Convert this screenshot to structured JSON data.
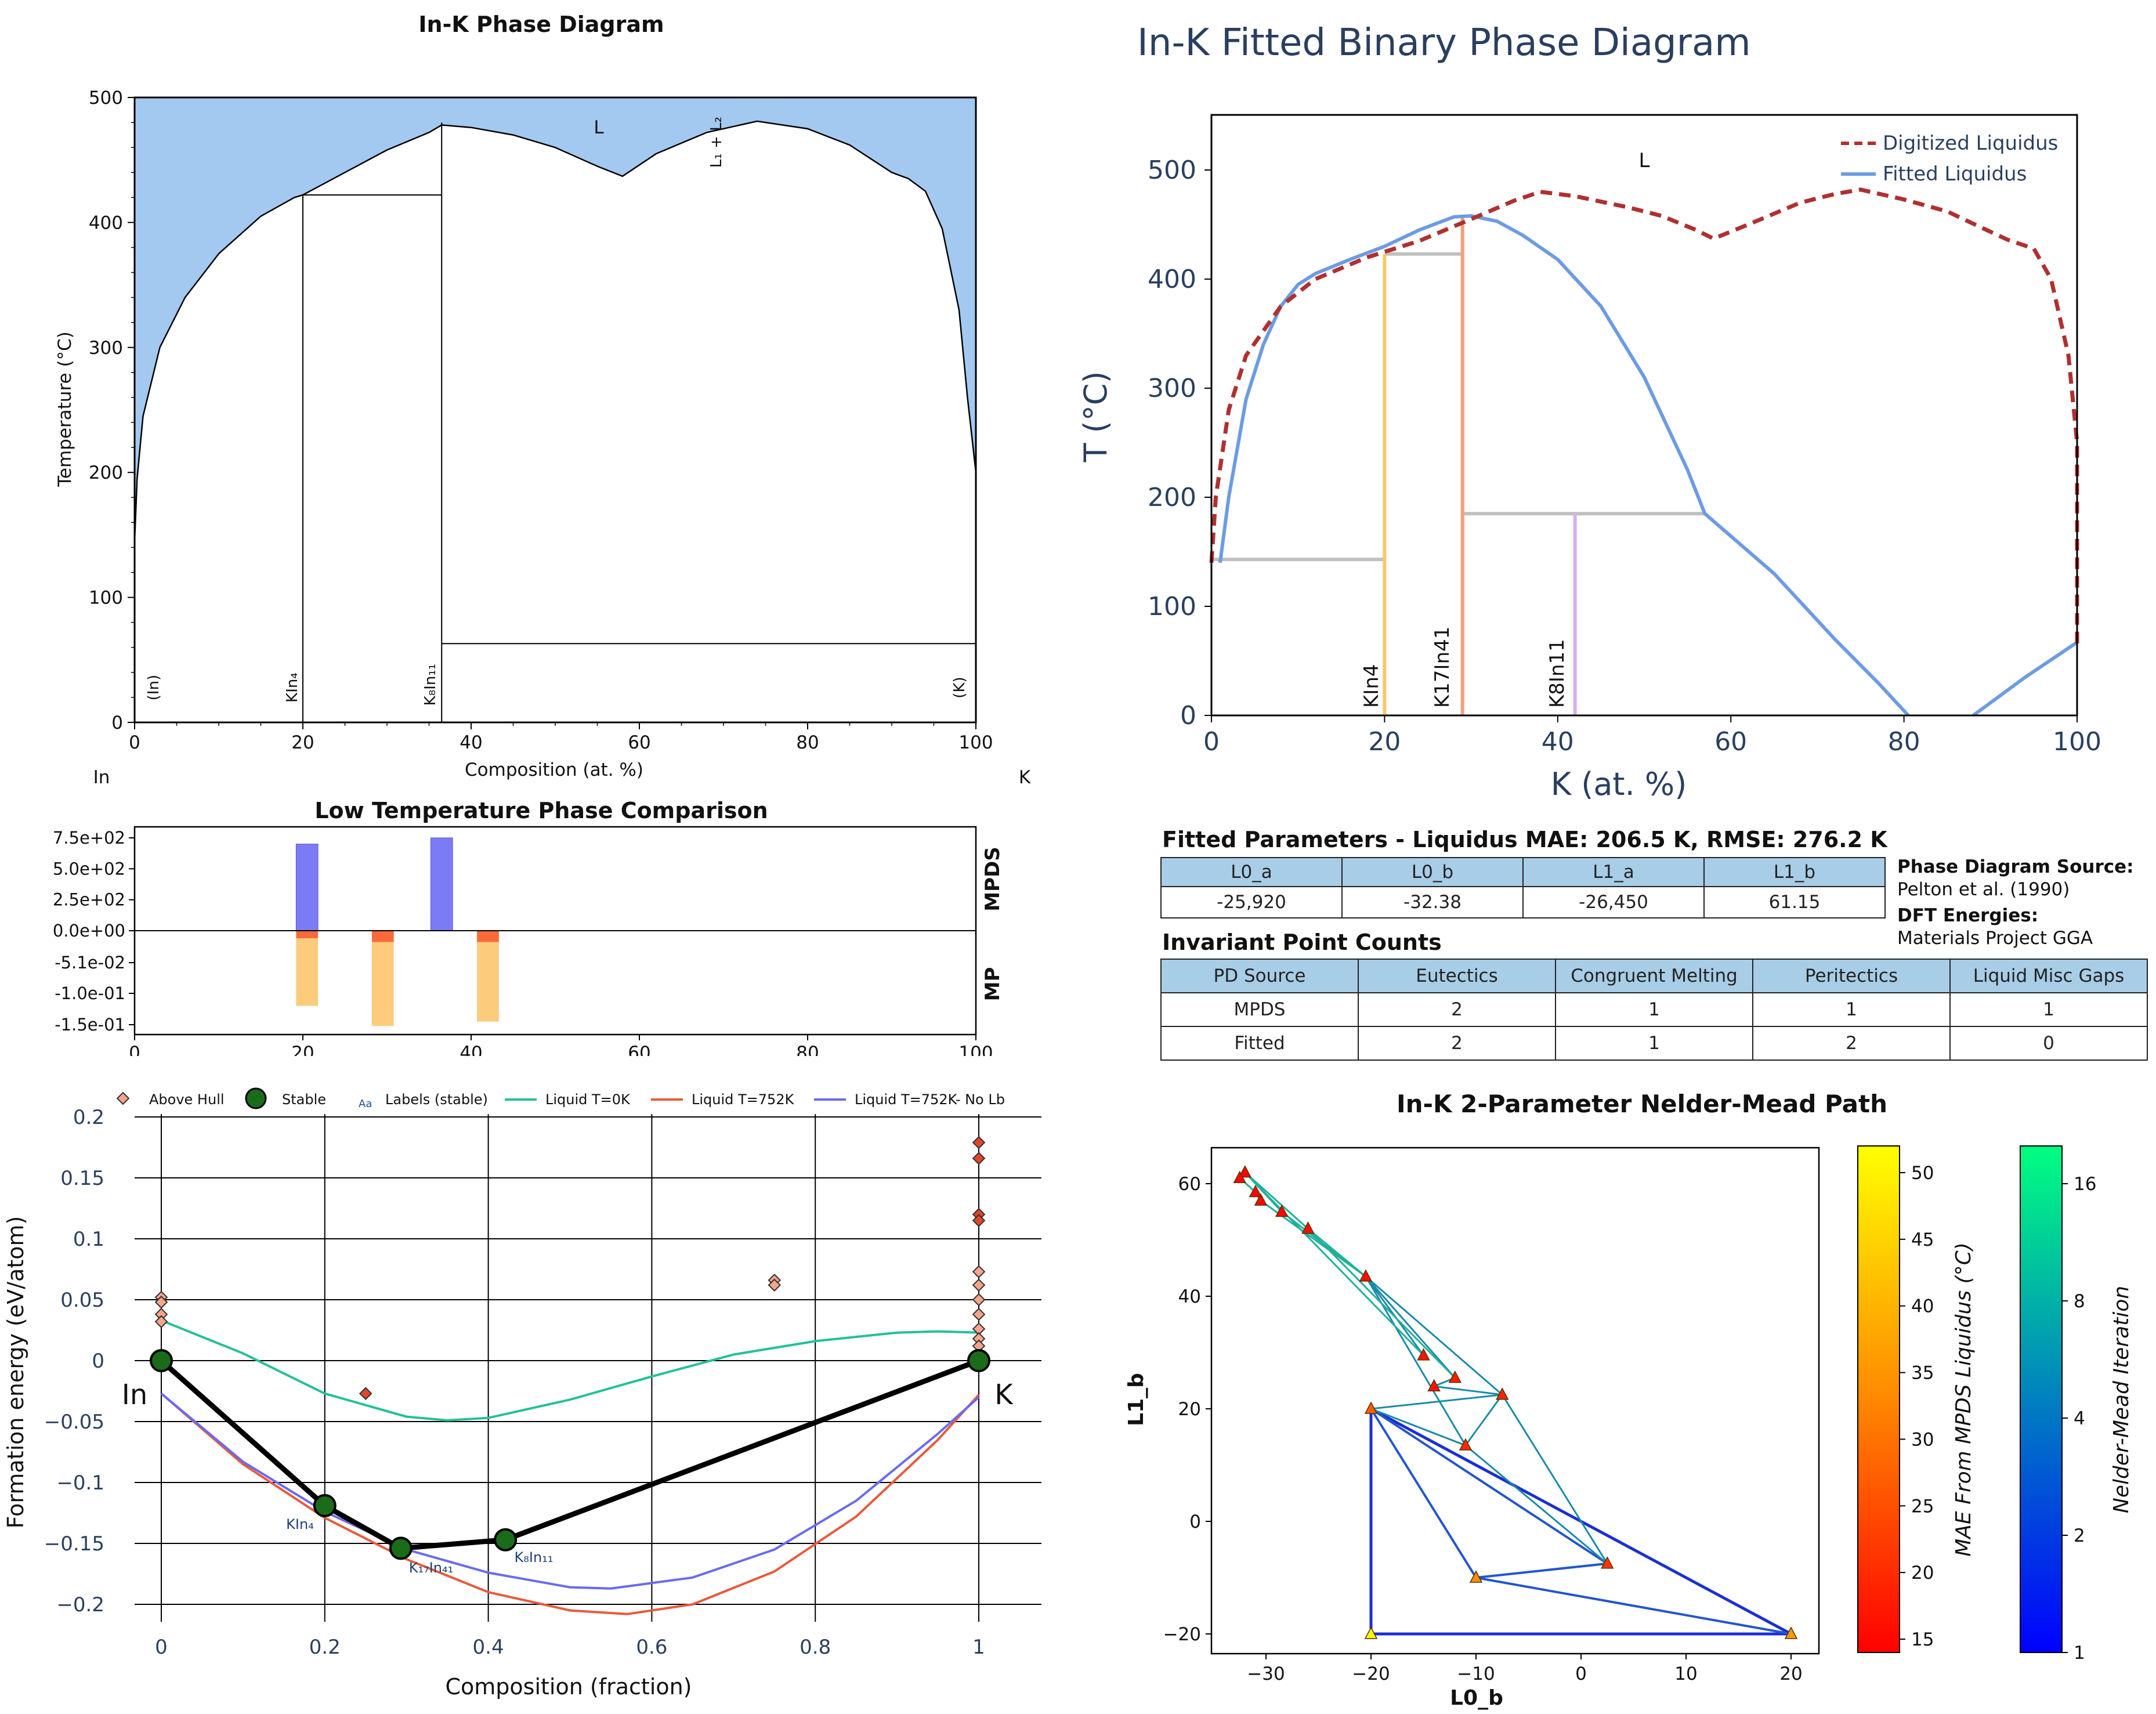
{
  "colors": {
    "liquid_fill": "#a3c9f1",
    "mpds_bar": "#7b7cf5",
    "mp_bar_light": "#fccb7c",
    "mp_bar_dark": "#f86a3a",
    "digitized": "#b03030",
    "fitted": "#6d9be4",
    "gray_line": "#c0c0c0",
    "kin4": "#f7c86a",
    "k17in41": "#f4a07c",
    "k8in11": "#d9aef0",
    "liquid_0k": "#22c197",
    "liquid_752k": "#e85a3a",
    "liquid_752k_nolb": "#6a6af0",
    "stable": "#1a6b1a",
    "table_header": "#a8cde6"
  },
  "panel1": {
    "title": "In-K Phase Diagram",
    "ylabel": "Temperature (°C)",
    "xlabel": "Composition (at. %)",
    "left_element": "In",
    "right_element": "K",
    "region_label_L": "L",
    "region_label_L1L2": "L₁ + L₂",
    "phase_labels": [
      "(In)",
      "KIn₄",
      "K₈In₁₁",
      "(K)"
    ],
    "xticks": [
      "0",
      "20",
      "40",
      "60",
      "80",
      "100"
    ],
    "yticks": [
      "0",
      "100",
      "200",
      "300",
      "400",
      "500"
    ]
  },
  "panel2": {
    "title": "Low Temperature Phase Comparison",
    "right_label_top": "MPDS",
    "right_label_bottom": "MP",
    "yticks": [
      "7.5e+02",
      "5.0e+02",
      "2.5e+02",
      "0.0e+00",
      "-5.1e-02",
      "-1.0e-01",
      "-1.5e-01"
    ],
    "xticks": [
      "0",
      "20",
      "40",
      "60",
      "80",
      "100"
    ]
  },
  "panel3": {
    "legend": [
      "Above Hull",
      "Stable",
      "Labels (stable)",
      "Liquid T=0K",
      "Liquid T=752K",
      "Liquid T=752K- No Lb"
    ],
    "legend_aa": "Aa",
    "ylabel": "Formation energy (eV/atom)",
    "xlabel": "Composition (fraction)",
    "yticks": [
      "0.2",
      "0.15",
      "0.1",
      "0.05",
      "0",
      "−0.05",
      "−0.1",
      "−0.15",
      "−0.2"
    ],
    "xticks": [
      "0",
      "0.2",
      "0.4",
      "0.6",
      "0.8",
      "1"
    ],
    "end_labels": [
      "In",
      "K"
    ],
    "point_labels": [
      "KIn₄",
      "K₁₇In₄₁",
      "K₈In₁₁"
    ]
  },
  "panel4": {
    "title": "In-K Fitted Binary Phase Diagram",
    "ylabel": "T (°C)",
    "xlabel": "K (at. %)",
    "legend": [
      "Digitized Liquidus",
      "Fitted Liquidus"
    ],
    "region_label": "L",
    "phase_labels": [
      "KIn4",
      "K17In41",
      "K8In11"
    ],
    "xticks": [
      "0",
      "20",
      "40",
      "60",
      "80",
      "100"
    ],
    "yticks": [
      "0",
      "100",
      "200",
      "300",
      "400",
      "500"
    ]
  },
  "tables": {
    "fitted_title": "Fitted Parameters - Liquidus MAE: 206.5 K, RMSE: 276.2 K",
    "fitted_headers": [
      "L0_a",
      "L0_b",
      "L1_a",
      "L1_b"
    ],
    "fitted_values": [
      "-25,920",
      "-32.38",
      "-26,450",
      "61.15"
    ],
    "source_label": "Phase Diagram Source:",
    "source_value": "Pelton et al. (1990)",
    "dft_label": "DFT Energies:",
    "dft_value": "Materials Project GGA",
    "inv_title": "Invariant Point Counts",
    "inv_headers": [
      "PD Source",
      "Eutectics",
      "Congruent Melting",
      "Peritectics",
      "Liquid Misc Gaps"
    ],
    "inv_rows": [
      [
        "MPDS",
        "2",
        "1",
        "1",
        "1"
      ],
      [
        "Fitted",
        "2",
        "1",
        "2",
        "0"
      ]
    ]
  },
  "panel5": {
    "title": "In-K 2-Parameter Nelder-Mead Path",
    "xlabel": "L0_b",
    "ylabel": "L1_b",
    "xticks": [
      "−30",
      "−20",
      "−10",
      "0",
      "10",
      "20"
    ],
    "yticks": [
      "60",
      "40",
      "20",
      "0",
      "−20"
    ],
    "cbar1_label": "MAE From MPDS Liquidus (°C)",
    "cbar1_ticks": [
      "50",
      "45",
      "40",
      "35",
      "30",
      "25",
      "20",
      "15"
    ],
    "cbar2_label": "Nelder-Mead Iteration",
    "cbar2_ticks": [
      "16",
      "8",
      "4",
      "2",
      "1"
    ]
  },
  "chart_data": [
    {
      "type": "area",
      "name": "In-K Phase Diagram",
      "xlim": [
        0,
        100
      ],
      "ylim": [
        0,
        500
      ],
      "liquidus": [
        [
          0,
          145
        ],
        [
          0.3,
          195
        ],
        [
          1,
          245
        ],
        [
          3,
          300
        ],
        [
          6,
          340
        ],
        [
          10,
          375
        ],
        [
          15,
          405
        ],
        [
          19,
          420
        ],
        [
          20,
          422
        ],
        [
          25,
          440
        ],
        [
          30,
          458
        ],
        [
          35,
          472
        ],
        [
          36.5,
          478
        ],
        [
          40,
          476
        ],
        [
          45,
          470
        ],
        [
          50,
          460
        ],
        [
          55,
          445
        ],
        [
          58,
          437
        ],
        [
          62,
          455
        ],
        [
          68,
          472
        ],
        [
          74,
          481
        ],
        [
          80,
          475
        ],
        [
          85,
          462
        ],
        [
          90,
          440
        ],
        [
          92,
          435
        ],
        [
          94,
          425
        ],
        [
          96,
          395
        ],
        [
          98,
          330
        ],
        [
          99,
          260
        ],
        [
          100,
          200
        ]
      ],
      "horizontals": [
        [
          20,
          36.5,
          422
        ],
        [
          36.5,
          100,
          63
        ]
      ],
      "verticals": [
        [
          20,
          0,
          422
        ],
        [
          36.5,
          0,
          480
        ]
      ]
    },
    {
      "type": "bar",
      "name": "Low Temperature Phase Comparison",
      "xlim": [
        0,
        100
      ],
      "mpds": [
        {
          "x": 20.5,
          "value": 700
        },
        {
          "x": 36.5,
          "value": 750
        }
      ],
      "mp_total": [
        {
          "x": 20.5,
          "value": -0.12
        },
        {
          "x": 29.5,
          "value": -0.152
        },
        {
          "x": 42,
          "value": -0.145
        }
      ],
      "mp_hull": [
        {
          "x": 20.5,
          "value": -0.012
        },
        {
          "x": 29.5,
          "value": -0.018
        },
        {
          "x": 42,
          "value": -0.018
        }
      ]
    },
    {
      "type": "scatter",
      "name": "Formation energy",
      "xlim": [
        -0.02,
        1.07
      ],
      "ylim": [
        -0.22,
        0.2
      ],
      "stable": [
        [
          0,
          0
        ],
        [
          0.2,
          -0.119
        ],
        [
          0.293,
          -0.154
        ],
        [
          0.421,
          -0.147
        ],
        [
          1,
          0
        ]
      ],
      "above_hull": [
        [
          0,
          0.052
        ],
        [
          0,
          0.048
        ],
        [
          0,
          0.038
        ],
        [
          0,
          0.032
        ],
        [
          0.25,
          -0.027
        ],
        [
          0.75,
          0.066
        ],
        [
          0.75,
          0.062
        ],
        [
          1,
          0.179
        ],
        [
          1,
          0.166
        ],
        [
          1,
          0.12
        ],
        [
          1,
          0.115
        ],
        [
          1,
          0.073
        ],
        [
          1,
          0.062
        ],
        [
          1,
          0.05
        ],
        [
          1,
          0.038
        ],
        [
          1,
          0.026
        ],
        [
          1,
          0.018
        ],
        [
          1,
          0.012
        ]
      ],
      "liquid_0K": [
        [
          0,
          0.033
        ],
        [
          0.1,
          0.006
        ],
        [
          0.2,
          -0.027
        ],
        [
          0.3,
          -0.046
        ],
        [
          0.35,
          -0.049
        ],
        [
          0.4,
          -0.047
        ],
        [
          0.5,
          -0.032
        ],
        [
          0.6,
          -0.013
        ],
        [
          0.7,
          0.005
        ],
        [
          0.8,
          0.016
        ],
        [
          0.9,
          0.023
        ],
        [
          0.95,
          0.024
        ],
        [
          1,
          0.023
        ]
      ],
      "liquid_752K": [
        [
          0,
          -0.027
        ],
        [
          0.1,
          -0.085
        ],
        [
          0.2,
          -0.129
        ],
        [
          0.3,
          -0.163
        ],
        [
          0.4,
          -0.19
        ],
        [
          0.5,
          -0.205
        ],
        [
          0.57,
          -0.208
        ],
        [
          0.65,
          -0.2
        ],
        [
          0.75,
          -0.173
        ],
        [
          0.85,
          -0.128
        ],
        [
          0.95,
          -0.065
        ],
        [
          1,
          -0.028
        ]
      ],
      "liquid_752K_no_lb": [
        [
          0,
          -0.027
        ],
        [
          0.1,
          -0.083
        ],
        [
          0.2,
          -0.124
        ],
        [
          0.3,
          -0.155
        ],
        [
          0.4,
          -0.174
        ],
        [
          0.5,
          -0.186
        ],
        [
          0.55,
          -0.187
        ],
        [
          0.65,
          -0.178
        ],
        [
          0.75,
          -0.155
        ],
        [
          0.85,
          -0.115
        ],
        [
          0.95,
          -0.06
        ],
        [
          1,
          -0.03
        ]
      ]
    },
    {
      "type": "line",
      "name": "In-K Fitted Binary Phase Diagram",
      "xlim": [
        0,
        100
      ],
      "ylim": [
        0,
        550
      ],
      "digitized": [
        [
          0,
          140
        ],
        [
          0.5,
          200
        ],
        [
          2,
          280
        ],
        [
          4,
          330
        ],
        [
          8,
          375
        ],
        [
          12,
          400
        ],
        [
          18,
          420
        ],
        [
          24,
          435
        ],
        [
          30,
          455
        ],
        [
          35,
          472
        ],
        [
          38,
          480
        ],
        [
          42,
          476
        ],
        [
          48,
          466
        ],
        [
          52,
          458
        ],
        [
          56,
          445
        ],
        [
          58,
          437
        ],
        [
          62,
          450
        ],
        [
          68,
          470
        ],
        [
          72,
          478
        ],
        [
          75,
          482
        ],
        [
          80,
          473
        ],
        [
          85,
          462
        ],
        [
          89,
          447
        ],
        [
          92,
          436
        ],
        [
          95,
          428
        ],
        [
          97,
          400
        ],
        [
          99,
          330
        ],
        [
          100,
          250
        ],
        [
          100,
          65
        ]
      ],
      "fitted": [
        [
          1,
          140
        ],
        [
          2,
          200
        ],
        [
          4,
          290
        ],
        [
          6,
          340
        ],
        [
          8,
          375
        ],
        [
          10,
          395
        ],
        [
          12,
          405
        ],
        [
          16,
          418
        ],
        [
          20,
          430
        ],
        [
          24,
          445
        ],
        [
          28,
          457
        ],
        [
          30,
          458
        ],
        [
          33,
          453
        ],
        [
          36,
          440
        ],
        [
          40,
          418
        ],
        [
          45,
          375
        ],
        [
          50,
          310
        ],
        [
          55,
          225
        ],
        [
          57,
          185
        ],
        [
          65,
          130
        ],
        [
          72,
          70
        ],
        [
          77,
          30
        ],
        [
          80.5,
          0
        ]
      ],
      "fitted_right": [
        [
          88,
          0
        ],
        [
          94,
          35
        ],
        [
          100,
          67
        ]
      ],
      "gray_lines": [
        [
          0,
          20,
          143
        ],
        [
          20,
          29,
          423
        ],
        [
          29,
          57,
          185
        ]
      ],
      "vertical_lines": [
        {
          "x": 20,
          "y0": 0,
          "y1": 423,
          "color": "#f7c86a"
        },
        {
          "x": 29,
          "y0": 0,
          "y1": 458,
          "color": "#f4a07c"
        },
        {
          "x": 42,
          "y0": 0,
          "y1": 185,
          "color": "#d9aef0"
        }
      ]
    },
    {
      "type": "scatter",
      "name": "In-K 2-Parameter Nelder-Mead Path",
      "xlim": [
        -35,
        23
      ],
      "ylim": [
        -24,
        66
      ],
      "points": [
        [
          -20,
          -20,
          51
        ],
        [
          20,
          -20,
          37
        ],
        [
          -20,
          20,
          28
        ],
        [
          -10,
          -10,
          35
        ],
        [
          2.5,
          -7.5,
          22
        ],
        [
          -11,
          13.5,
          20
        ],
        [
          -7.5,
          22.5,
          19
        ],
        [
          -12,
          25.5,
          18
        ],
        [
          -15,
          29.5,
          17
        ],
        [
          -14,
          24,
          17
        ],
        [
          -20.5,
          43.5,
          16
        ],
        [
          -26,
          52,
          16
        ],
        [
          -28.5,
          55,
          15
        ],
        [
          -30.5,
          57,
          15
        ],
        [
          -31,
          58.5,
          15
        ],
        [
          -32,
          62,
          15
        ],
        [
          -32.5,
          61,
          15
        ]
      ],
      "edges_iter1": [
        [
          [
            -20,
            -20
          ],
          [
            20,
            -20
          ]
        ],
        [
          [
            -20,
            -20
          ],
          [
            -20,
            20
          ]
        ],
        [
          [
            -20,
            20
          ],
          [
            20,
            -20
          ]
        ]
      ],
      "edges_iter2": [
        [
          [
            -20,
            20
          ],
          [
            -10,
            -10
          ]
        ],
        [
          [
            -10,
            -10
          ],
          [
            20,
            -20
          ]
        ],
        [
          [
            -20,
            20
          ],
          [
            2.5,
            -7.5
          ]
        ],
        [
          [
            -10,
            -10
          ],
          [
            2.5,
            -7.5
          ]
        ]
      ],
      "edges_iter4": [
        [
          [
            -20,
            20
          ],
          [
            -11,
            13.5
          ]
        ],
        [
          [
            -11,
            13.5
          ],
          [
            2.5,
            -7.5
          ]
        ],
        [
          [
            -20,
            20
          ],
          [
            -7.5,
            22.5
          ]
        ],
        [
          [
            -7.5,
            22.5
          ],
          [
            2.5,
            -7.5
          ]
        ],
        [
          [
            -11,
            13.5
          ],
          [
            -7.5,
            22.5
          ]
        ],
        [
          [
            -7.5,
            22.5
          ],
          [
            -20.5,
            43.5
          ]
        ],
        [
          [
            -11,
            13.5
          ],
          [
            -20.5,
            43.5
          ]
        ],
        [
          [
            -14,
            24
          ],
          [
            -7.5,
            22.5
          ]
        ],
        [
          [
            -15,
            29.5
          ],
          [
            -20.5,
            43.5
          ]
        ],
        [
          [
            -12,
            25.5
          ],
          [
            -20.5,
            43.5
          ]
        ],
        [
          [
            -14,
            24
          ],
          [
            -12,
            25.5
          ]
        ]
      ],
      "edges_late": [
        [
          [
            -20.5,
            43.5
          ],
          [
            -26,
            52
          ]
        ],
        [
          [
            -26,
            52
          ],
          [
            -32,
            62
          ]
        ],
        [
          [
            -32,
            62
          ],
          [
            -28.5,
            55
          ]
        ],
        [
          [
            -28.5,
            55
          ],
          [
            -20.5,
            43.5
          ]
        ],
        [
          [
            -30.5,
            57
          ],
          [
            -31,
            58.5
          ]
        ],
        [
          [
            -31,
            58.5
          ],
          [
            -32.5,
            61
          ]
        ],
        [
          [
            -30.5,
            57
          ],
          [
            -20.5,
            43.5
          ]
        ],
        [
          [
            -32,
            62
          ],
          [
            -15,
            29.5
          ]
        ],
        [
          [
            -26,
            52
          ],
          [
            -12,
            25.5
          ]
        ]
      ]
    }
  ]
}
